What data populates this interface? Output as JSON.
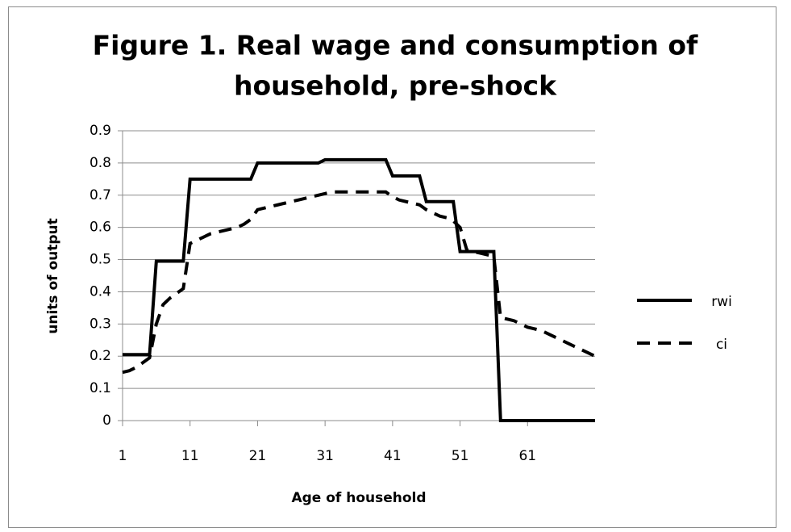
{
  "chart_data": {
    "type": "line",
    "title": [
      "Figure 1. Real wage and consumption  of",
      "household,  pre-shock"
    ],
    "x_label": "Age of household",
    "y_label": "units of output",
    "x": [
      1,
      2,
      3,
      4,
      5,
      6,
      7,
      8,
      9,
      10,
      11,
      12,
      13,
      14,
      15,
      16,
      17,
      18,
      19,
      20,
      21,
      22,
      23,
      24,
      25,
      26,
      27,
      28,
      29,
      30,
      31,
      32,
      33,
      34,
      35,
      36,
      37,
      38,
      39,
      40,
      41,
      42,
      43,
      44,
      45,
      46,
      47,
      48,
      49,
      50,
      51,
      52,
      53,
      54,
      55,
      56,
      57,
      58,
      59,
      60,
      61,
      62,
      63,
      64,
      65,
      66,
      67,
      68,
      69,
      70,
      71
    ],
    "series": [
      {
        "name": "rwi",
        "color": "#000000",
        "dash": false,
        "values": [
          0.205,
          0.205,
          0.205,
          0.205,
          0.205,
          0.495,
          0.495,
          0.495,
          0.495,
          0.495,
          0.75,
          0.75,
          0.75,
          0.75,
          0.75,
          0.75,
          0.75,
          0.75,
          0.75,
          0.75,
          0.8,
          0.8,
          0.8,
          0.8,
          0.8,
          0.8,
          0.8,
          0.8,
          0.8,
          0.8,
          0.81,
          0.81,
          0.81,
          0.81,
          0.81,
          0.81,
          0.81,
          0.81,
          0.81,
          0.81,
          0.76,
          0.76,
          0.76,
          0.76,
          0.76,
          0.68,
          0.68,
          0.68,
          0.68,
          0.68,
          0.525,
          0.525,
          0.525,
          0.525,
          0.525,
          0.525,
          0,
          0,
          0,
          0,
          0,
          0,
          0,
          0,
          0,
          0,
          0,
          0,
          0,
          0,
          0
        ]
      },
      {
        "name": "ci",
        "color": "#000000",
        "dash": true,
        "values": [
          0.15,
          0.155,
          0.165,
          0.18,
          0.195,
          0.3,
          0.36,
          0.38,
          0.395,
          0.41,
          0.55,
          0.56,
          0.57,
          0.58,
          0.585,
          0.59,
          0.595,
          0.6,
          0.61,
          0.625,
          0.655,
          0.66,
          0.665,
          0.67,
          0.675,
          0.68,
          0.685,
          0.69,
          0.695,
          0.7,
          0.705,
          0.71,
          0.71,
          0.71,
          0.71,
          0.71,
          0.71,
          0.71,
          0.71,
          0.71,
          0.695,
          0.685,
          0.68,
          0.675,
          0.67,
          0.655,
          0.645,
          0.635,
          0.63,
          0.62,
          0.6,
          0.53,
          0.525,
          0.52,
          0.515,
          0.51,
          0.32,
          0.315,
          0.31,
          0.3,
          0.29,
          0.285,
          0.28,
          0.27,
          0.26,
          0.25,
          0.24,
          0.23,
          0.22,
          0.21,
          0.2
        ]
      }
    ],
    "xlim": [
      1,
      71
    ],
    "xticks": [
      1,
      11,
      21,
      31,
      41,
      51,
      61
    ],
    "ylim": [
      0,
      0.9
    ],
    "yticks": [
      0,
      0.1,
      0.2,
      0.3,
      0.4,
      0.5,
      0.6,
      0.7,
      0.8,
      0.9
    ],
    "grid": true,
    "legend": "right"
  }
}
